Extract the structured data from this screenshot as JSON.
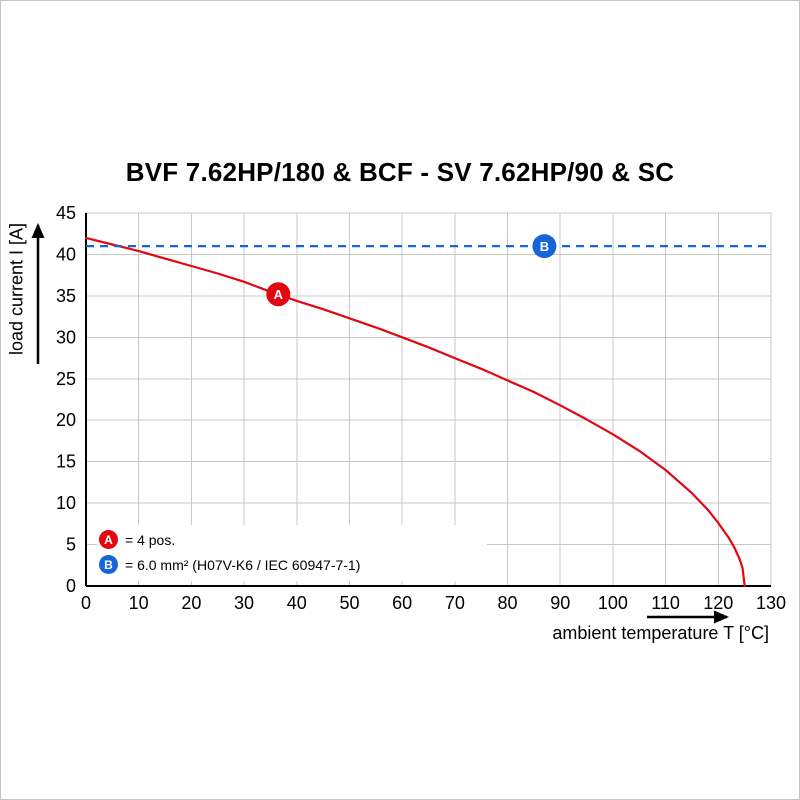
{
  "chart_data": {
    "type": "line",
    "title": "BVF 7.62HP/180 & BCF - SV 7.62HP/90 & SC",
    "xlabel": "ambient temperature T [°C]",
    "ylabel": "load current I [A]",
    "xlim": [
      0,
      130
    ],
    "ylim": [
      0,
      45
    ],
    "x_ticks": [
      0,
      10,
      20,
      30,
      40,
      50,
      60,
      70,
      80,
      90,
      100,
      110,
      120,
      130
    ],
    "y_ticks": [
      0,
      5,
      10,
      15,
      20,
      25,
      30,
      35,
      40,
      45
    ],
    "grid": true,
    "grid_color": "#c8c8c8",
    "series": [
      {
        "name": "A",
        "style": "solid-curve",
        "color": "#e30613",
        "points": [
          [
            0,
            42
          ],
          [
            5,
            41.2
          ],
          [
            10,
            40.4
          ],
          [
            15,
            39.5
          ],
          [
            20,
            38.6
          ],
          [
            25,
            37.7
          ],
          [
            30,
            36.7
          ],
          [
            35,
            35.5
          ],
          [
            40,
            34.4
          ],
          [
            45,
            33.4
          ],
          [
            50,
            32.3
          ],
          [
            55,
            31.2
          ],
          [
            60,
            30.0
          ],
          [
            65,
            28.8
          ],
          [
            70,
            27.5
          ],
          [
            75,
            26.2
          ],
          [
            80,
            24.8
          ],
          [
            85,
            23.4
          ],
          [
            90,
            21.8
          ],
          [
            95,
            20.1
          ],
          [
            100,
            18.3
          ],
          [
            105,
            16.3
          ],
          [
            110,
            14.0
          ],
          [
            115,
            11.2
          ],
          [
            118,
            9.2
          ],
          [
            120,
            7.6
          ],
          [
            122,
            5.8
          ],
          [
            123,
            4.7
          ],
          [
            124,
            3.3
          ],
          [
            124.6,
            2.2
          ],
          [
            125,
            0
          ]
        ]
      },
      {
        "name": "B",
        "style": "dashed-horizontal",
        "color": "#1565d8",
        "value": 41,
        "x_start": 0,
        "x_end": 130
      }
    ],
    "markers": [
      {
        "label": "A",
        "color": "#e30613",
        "x": 36.5,
        "y": 35.2
      },
      {
        "label": "B",
        "color": "#1565d8",
        "x": 87,
        "y": 41
      }
    ],
    "legend": [
      {
        "label": "A",
        "color": "#e30613",
        "text": "= 4 pos."
      },
      {
        "label": "B",
        "color": "#1565d8",
        "text": "= 6.0 mm² (H07V-K6 / IEC 60947-7-1)"
      }
    ],
    "legend_position": "bottom-left-inside"
  }
}
